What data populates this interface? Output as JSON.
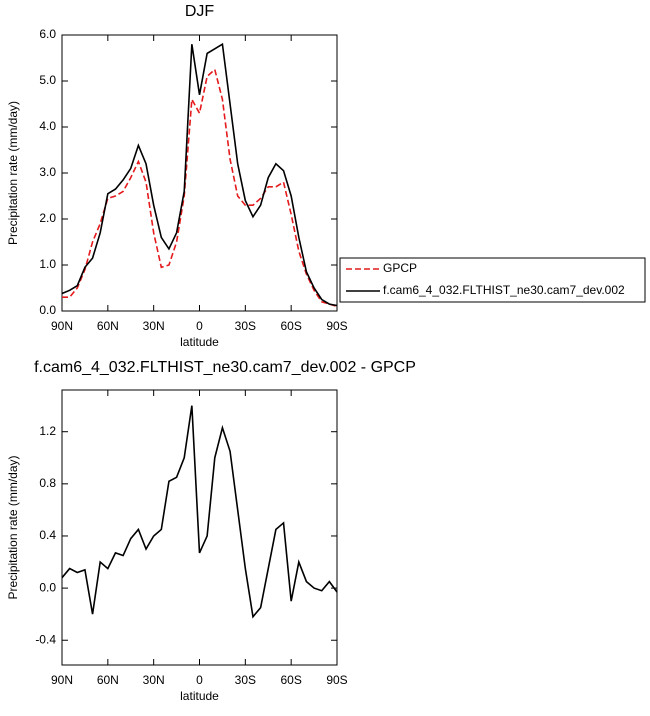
{
  "chart_data": [
    {
      "type": "line",
      "title": "DJF",
      "xlabel": "latitude",
      "ylabel": "Precipitation rate (mm/day)",
      "x": [
        90,
        85,
        80,
        75,
        70,
        65,
        60,
        55,
        50,
        45,
        40,
        35,
        30,
        25,
        20,
        15,
        10,
        5,
        0,
        -5,
        -10,
        -15,
        -20,
        -25,
        -30,
        -35,
        -40,
        -45,
        -50,
        -55,
        -60,
        -65,
        -70,
        -75,
        -80,
        -85,
        -90
      ],
      "series": [
        {
          "name": "GPCP",
          "color": "#e41a1c",
          "style": "dashed",
          "values": [
            0.3,
            0.3,
            0.5,
            0.9,
            1.5,
            1.9,
            2.45,
            2.5,
            2.6,
            2.9,
            3.25,
            2.8,
            1.7,
            0.95,
            1.0,
            1.5,
            2.5,
            4.6,
            4.3,
            5.1,
            5.25,
            4.6,
            3.3,
            2.5,
            2.3,
            2.3,
            2.45,
            2.7,
            2.7,
            2.8,
            2.1,
            1.3,
            0.8,
            0.45,
            0.2,
            0.15,
            0.1
          ]
        },
        {
          "name": "f.cam6_4_032.FLTHIST_ne30.cam7_dev.002",
          "color": "#000000",
          "style": "solid",
          "values": [
            0.38,
            0.45,
            0.55,
            0.95,
            1.15,
            1.7,
            2.55,
            2.65,
            2.85,
            3.1,
            3.6,
            3.2,
            2.3,
            1.6,
            1.35,
            1.7,
            2.6,
            5.8,
            4.7,
            5.6,
            5.7,
            5.8,
            4.5,
            3.2,
            2.4,
            2.05,
            2.3,
            2.9,
            3.2,
            3.05,
            2.5,
            1.6,
            0.85,
            0.5,
            0.25,
            0.15,
            0.12
          ]
        }
      ],
      "xlim": [
        90,
        -90
      ],
      "xticks": [
        {
          "value": 90,
          "label": "90N"
        },
        {
          "value": 60,
          "label": "60N"
        },
        {
          "value": 30,
          "label": "30N"
        },
        0,
        {
          "value": -30,
          "label": "30S"
        },
        {
          "value": -60,
          "label": "60S"
        },
        {
          "value": -90,
          "label": "90S"
        }
      ],
      "ylim": [
        0,
        6
      ],
      "yticks": [
        {
          "value": 0,
          "label": "0.0"
        },
        {
          "value": 1,
          "label": "1.0"
        },
        {
          "value": 2,
          "label": "2.0"
        },
        {
          "value": 3,
          "label": "3.0"
        },
        {
          "value": 4,
          "label": "4.0"
        },
        {
          "value": 5,
          "label": "5.0"
        },
        {
          "value": 6,
          "label": "6.0"
        }
      ],
      "legend": "right"
    },
    {
      "type": "line",
      "title": "f.cam6_4_032.FLTHIST_ne30.cam7_dev.002 - GPCP",
      "xlabel": "latitude",
      "ylabel": "Precipitation rate (mm/day)",
      "x": [
        90,
        85,
        80,
        75,
        70,
        65,
        60,
        55,
        50,
        45,
        40,
        35,
        30,
        25,
        20,
        15,
        10,
        5,
        0,
        -5,
        -10,
        -15,
        -20,
        -25,
        -30,
        -35,
        -40,
        -45,
        -50,
        -55,
        -60,
        -65,
        -70,
        -75,
        -80,
        -85,
        -90
      ],
      "color": "#000000",
      "values": [
        0.08,
        0.15,
        0.12,
        0.14,
        -0.2,
        0.2,
        0.15,
        0.27,
        0.25,
        0.38,
        0.45,
        0.3,
        0.4,
        0.45,
        0.82,
        0.85,
        1.0,
        1.4,
        0.27,
        0.4,
        1.0,
        1.23,
        1.05,
        0.6,
        0.15,
        -0.22,
        -0.15,
        0.15,
        0.45,
        0.5,
        -0.1,
        0.2,
        0.05,
        0.0,
        -0.02,
        0.05,
        -0.03
      ],
      "xlim": [
        90,
        -90
      ],
      "xticks": [
        {
          "value": 90,
          "label": "90N"
        },
        {
          "value": 60,
          "label": "60N"
        },
        {
          "value": 30,
          "label": "30N"
        },
        0,
        {
          "value": -30,
          "label": "30S"
        },
        {
          "value": -60,
          "label": "60S"
        },
        {
          "value": -90,
          "label": "90S"
        }
      ],
      "ylim": [
        -0.59,
        1.52
      ],
      "yticks": [
        -0.4,
        {
          "value": 0,
          "label": "0.0"
        },
        0.4,
        0.8,
        1.2
      ]
    }
  ]
}
